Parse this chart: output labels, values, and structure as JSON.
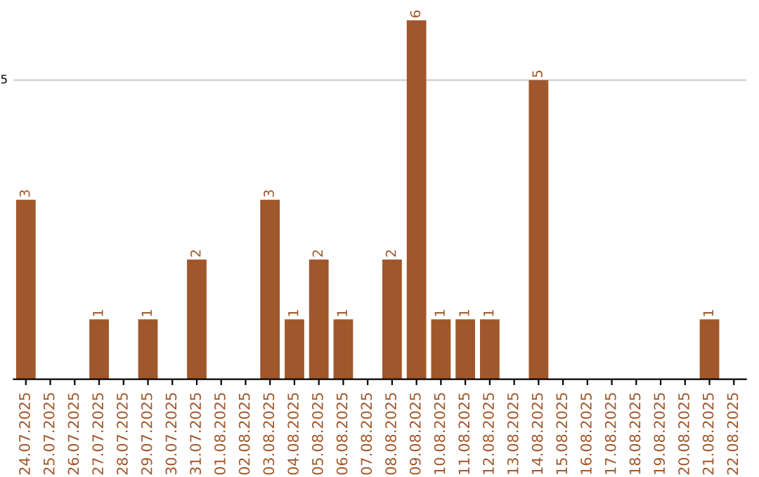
{
  "chart_data": {
    "type": "bar",
    "categories": [
      "24.07.2025",
      "25.07.2025",
      "26.07.2025",
      "27.07.2025",
      "28.07.2025",
      "29.07.2025",
      "30.07.2025",
      "31.07.2025",
      "01.08.2025",
      "02.08.2025",
      "03.08.2025",
      "04.08.2025",
      "05.08.2025",
      "06.08.2025",
      "07.08.2025",
      "08.08.2025",
      "09.08.2025",
      "10.08.2025",
      "11.08.2025",
      "12.08.2025",
      "13.08.2025",
      "14.08.2025",
      "15.08.2025",
      "16.08.2025",
      "17.08.2025",
      "18.08.2025",
      "19.08.2025",
      "20.08.2025",
      "21.08.2025",
      "22.08.2025"
    ],
    "values": [
      3,
      0,
      0,
      1,
      0,
      1,
      0,
      2,
      0,
      0,
      3,
      1,
      2,
      1,
      0,
      2,
      6,
      1,
      1,
      1,
      0,
      5,
      0,
      0,
      0,
      0,
      0,
      0,
      1,
      0
    ],
    "value_labels": [
      "3",
      null,
      null,
      "1",
      null,
      "1",
      null,
      "2",
      null,
      null,
      "3",
      "1",
      "2",
      "1",
      null,
      "2",
      "6",
      "1",
      "1",
      "1",
      null,
      "5",
      null,
      null,
      null,
      null,
      null,
      null,
      "1",
      null
    ],
    "color": "#a0572b",
    "ref_lines": [
      {
        "axis": "y",
        "value": 5,
        "label": "5",
        "color": "#c8c8c8"
      }
    ]
  }
}
